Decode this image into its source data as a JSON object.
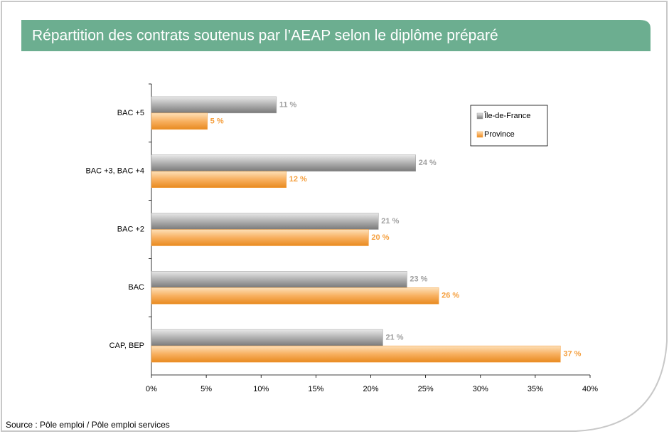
{
  "chart_data": {
    "type": "bar",
    "orientation": "horizontal",
    "title": "Répartition des contrats soutenus par l’AEAP selon le diplôme préparé",
    "source": "Source : Pôle emploi / Pôle emploi services",
    "categories": [
      "BAC +5",
      "BAC +3, BAC +4",
      "BAC +2",
      "BAC",
      "CAP, BEP"
    ],
    "series": [
      {
        "name": "Île-de-France",
        "color": "#a0a0a0",
        "values": [
          11.4,
          24.1,
          20.7,
          23.3,
          21.1
        ],
        "value_labels": [
          "11 %",
          "24 %",
          "21 %",
          "23 %",
          "21 %"
        ]
      },
      {
        "name": "Province",
        "color": "#f5a040",
        "values": [
          5.1,
          12.3,
          19.8,
          26.2,
          37.3
        ],
        "value_labels": [
          "5 %",
          "12 %",
          "20 %",
          "26 %",
          "37 %"
        ]
      }
    ],
    "xlim": [
      0,
      40
    ],
    "xticks": [
      {
        "value": 0,
        "label": "0%"
      },
      {
        "value": 5,
        "label": "5%"
      },
      {
        "value": 10,
        "label": "10%"
      },
      {
        "value": 15,
        "label": "15%"
      },
      {
        "value": 20,
        "label": "20%"
      },
      {
        "value": 25,
        "label": "25%"
      },
      {
        "value": 30,
        "label": "30%"
      },
      {
        "value": 35,
        "label": "35%"
      },
      {
        "value": 40,
        "label": "40%"
      }
    ],
    "legend": "top-right"
  }
}
